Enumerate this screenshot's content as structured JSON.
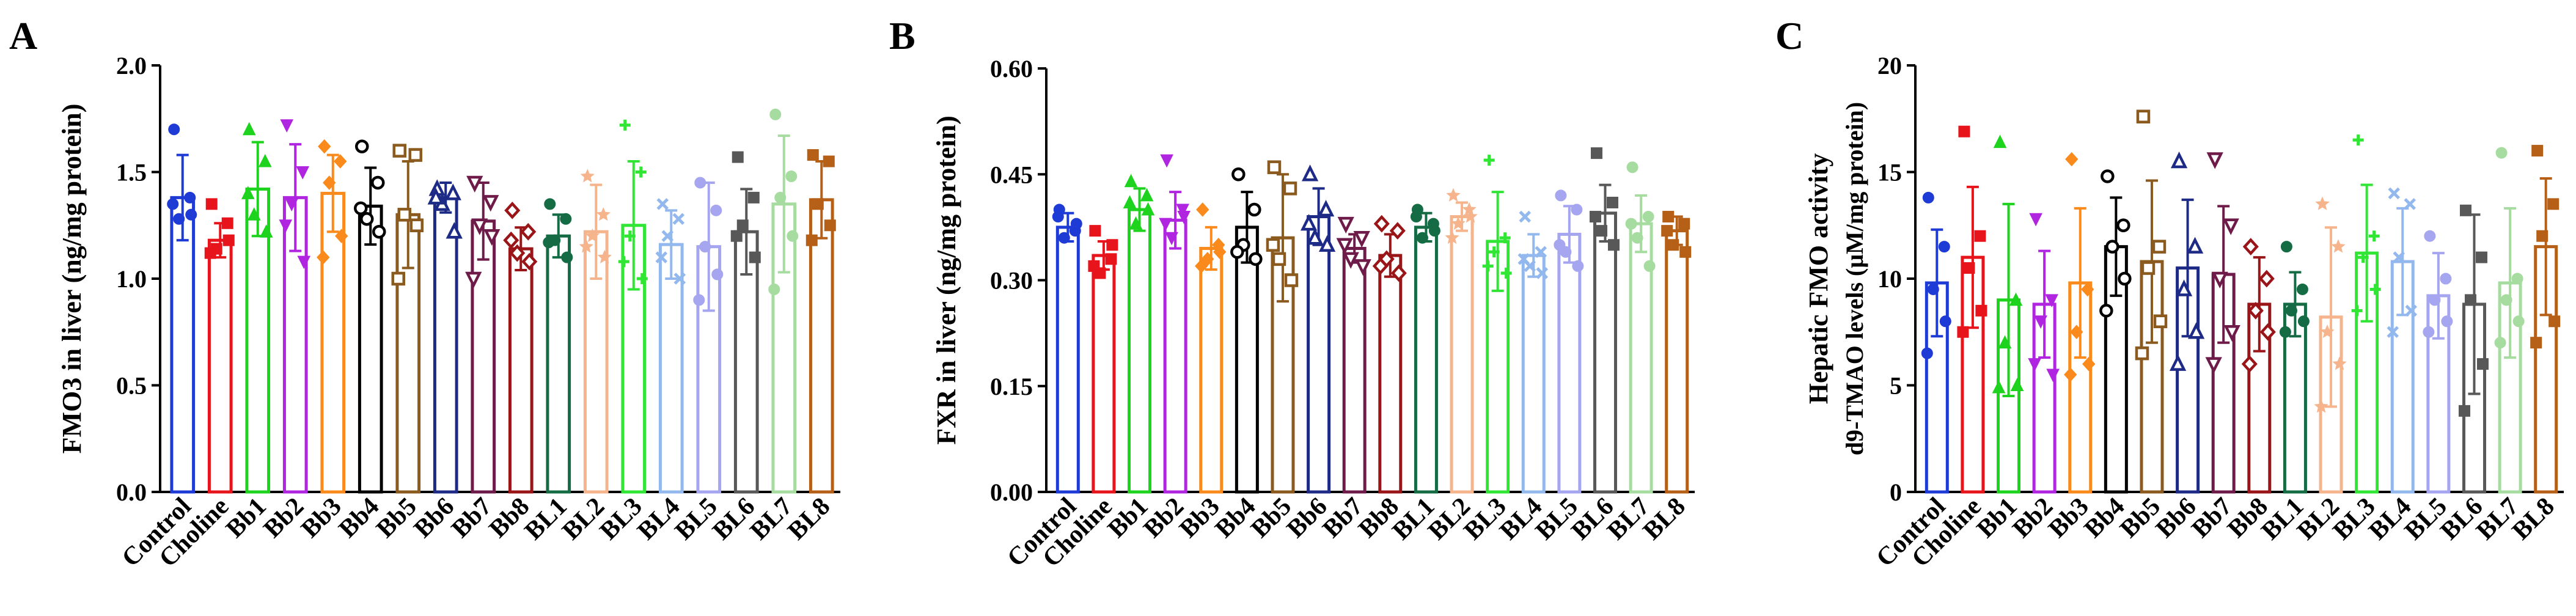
{
  "figure": {
    "categories": [
      "Control",
      "Choline",
      "Bb1",
      "Bb2",
      "Bb3",
      "Bb4",
      "Bb5",
      "Bb6",
      "Bb7",
      "Bb8",
      "BL1",
      "BL2",
      "BL3",
      "BL4",
      "BL5",
      "BL6",
      "BL7",
      "BL8"
    ],
    "colors": [
      "#1f3bd6",
      "#e8141c",
      "#1dd31d",
      "#b025e0",
      "#f98a1b",
      "#000000",
      "#8b5a1e",
      "#1e2b86",
      "#6e1b4a",
      "#9a1518",
      "#156c44",
      "#f6b48c",
      "#31e535",
      "#93b8ee",
      "#a6a6f0",
      "#585858",
      "#a6dca0",
      "#b55f17"
    ],
    "markers": [
      "circle",
      "square",
      "triangle",
      "triangle-down",
      "diamond",
      "circle-open",
      "square-open",
      "triangle-open",
      "triangle-down-open",
      "diamond-open",
      "circle",
      "star",
      "plus",
      "cross",
      "circle",
      "square",
      "circle",
      "square"
    ]
  },
  "chart_data": [
    {
      "type": "bar",
      "panel_label": "A",
      "ylabel": "FMO3 in liver (ng/mg protein)",
      "ylim": [
        0,
        2.0
      ],
      "yticks": [
        "0.0",
        "0.5",
        "1.0",
        "1.5",
        "2.0"
      ],
      "categories": [
        "Control",
        "Choline",
        "Bb1",
        "Bb2",
        "Bb3",
        "Bb4",
        "Bb5",
        "Bb6",
        "Bb7",
        "Bb8",
        "BL1",
        "BL2",
        "BL3",
        "BL4",
        "BL5",
        "BL6",
        "BL7",
        "BL8"
      ],
      "values": [
        1.38,
        1.18,
        1.42,
        1.38,
        1.4,
        1.34,
        1.3,
        1.38,
        1.27,
        1.14,
        1.2,
        1.22,
        1.25,
        1.16,
        1.15,
        1.22,
        1.35,
        1.37
      ],
      "errors": [
        0.2,
        0.08,
        0.22,
        0.25,
        0.18,
        0.18,
        0.25,
        0.07,
        0.18,
        0.1,
        0.1,
        0.22,
        0.3,
        0.16,
        0.3,
        0.2,
        0.32,
        0.18
      ],
      "points": [
        [
          1.7,
          1.38,
          1.28,
          1.3,
          1.35
        ],
        [
          1.35,
          1.26,
          1.14,
          1.18,
          1.12
        ],
        [
          1.7,
          1.55,
          1.3,
          1.22,
          1.4
        ],
        [
          1.72,
          1.5,
          1.35,
          1.08,
          1.25
        ],
        [
          1.62,
          1.55,
          1.45,
          1.2,
          1.1
        ],
        [
          1.62,
          1.45,
          1.28,
          1.22,
          1.33
        ],
        [
          1.6,
          1.58,
          1.3,
          1.25,
          1.0
        ],
        [
          1.42,
          1.4,
          1.35,
          1.22,
          1.38
        ],
        [
          1.45,
          1.36,
          1.25,
          1.2,
          1.0
        ],
        [
          1.32,
          1.22,
          1.12,
          1.08,
          1.18
        ],
        [
          1.35,
          1.28,
          1.18,
          1.1,
          1.17
        ],
        [
          1.48,
          1.3,
          1.2,
          1.1,
          1.15
        ],
        [
          1.72,
          1.5,
          1.2,
          1.0,
          1.08
        ],
        [
          1.35,
          1.28,
          1.2,
          1.0,
          1.1
        ],
        [
          1.45,
          1.32,
          1.15,
          1.02,
          0.9
        ],
        [
          1.57,
          1.38,
          1.25,
          1.1,
          1.2
        ],
        [
          1.77,
          1.48,
          1.38,
          1.2,
          0.95
        ],
        [
          1.58,
          1.55,
          1.35,
          1.25,
          1.18
        ]
      ]
    },
    {
      "type": "bar",
      "panel_label": "B",
      "ylabel": "FXR in liver (ng/mg protein)",
      "ylim": [
        0,
        0.6
      ],
      "yticks": [
        "0.00",
        "0.15",
        "0.30",
        "0.45",
        "0.60"
      ],
      "categories": [
        "Control",
        "Choline",
        "Bb1",
        "Bb2",
        "Bb3",
        "Bb4",
        "Bb5",
        "Bb6",
        "Bb7",
        "Bb8",
        "BL1",
        "BL2",
        "BL3",
        "BL4",
        "BL5",
        "BL6",
        "BL7",
        "BL8"
      ],
      "values": [
        0.375,
        0.335,
        0.4,
        0.385,
        0.345,
        0.375,
        0.36,
        0.39,
        0.345,
        0.335,
        0.375,
        0.39,
        0.355,
        0.335,
        0.365,
        0.395,
        0.38,
        0.37
      ],
      "errors": [
        0.02,
        0.02,
        0.03,
        0.04,
        0.03,
        0.05,
        0.09,
        0.04,
        0.02,
        0.03,
        0.02,
        0.02,
        0.07,
        0.03,
        0.04,
        0.04,
        0.04,
        0.02
      ],
      "points": [
        [
          0.4,
          0.37,
          0.36,
          0.38,
          0.39
        ],
        [
          0.37,
          0.33,
          0.31,
          0.35,
          0.32
        ],
        [
          0.44,
          0.42,
          0.38,
          0.4,
          0.41
        ],
        [
          0.47,
          0.4,
          0.36,
          0.39,
          0.38
        ],
        [
          0.4,
          0.35,
          0.33,
          0.34,
          0.32
        ],
        [
          0.45,
          0.4,
          0.35,
          0.33,
          0.34
        ],
        [
          0.46,
          0.43,
          0.33,
          0.3,
          0.35
        ],
        [
          0.45,
          0.4,
          0.36,
          0.35,
          0.38
        ],
        [
          0.38,
          0.36,
          0.33,
          0.32,
          0.35
        ],
        [
          0.38,
          0.37,
          0.33,
          0.31,
          0.32
        ],
        [
          0.4,
          0.38,
          0.36,
          0.37,
          0.39
        ],
        [
          0.42,
          0.4,
          0.38,
          0.39,
          0.36
        ],
        [
          0.47,
          0.36,
          0.34,
          0.31,
          0.32
        ],
        [
          0.39,
          0.34,
          0.32,
          0.31,
          0.33
        ],
        [
          0.42,
          0.4,
          0.34,
          0.32,
          0.35
        ],
        [
          0.48,
          0.41,
          0.37,
          0.35,
          0.39
        ],
        [
          0.46,
          0.39,
          0.36,
          0.32,
          0.38
        ],
        [
          0.39,
          0.38,
          0.35,
          0.34,
          0.37
        ]
      ]
    },
    {
      "type": "bar",
      "panel_label": "C",
      "ylabel": "Hepatic FMO activity",
      "ylabel2": "d9-TMAO levels (μM/mg protein)",
      "ylim": [
        0,
        20
      ],
      "yticks": [
        "0",
        "5",
        "10",
        "15",
        "20"
      ],
      "categories": [
        "Control",
        "Choline",
        "Bb1",
        "Bb2",
        "Bb3",
        "Bb4",
        "Bb5",
        "Bb6",
        "Bb7",
        "Bb8",
        "BL1",
        "BL2",
        "BL3",
        "BL4",
        "BL5",
        "BL6",
        "BL7",
        "BL8"
      ],
      "values": [
        9.8,
        11.0,
        9.0,
        8.8,
        9.8,
        11.5,
        10.8,
        10.5,
        10.2,
        8.8,
        8.8,
        8.2,
        11.2,
        10.8,
        9.2,
        8.8,
        9.8,
        11.5
      ],
      "errors": [
        2.5,
        3.3,
        4.5,
        2.5,
        3.5,
        2.3,
        3.8,
        3.2,
        3.2,
        2.2,
        1.5,
        4.2,
        3.2,
        2.5,
        2.0,
        4.2,
        3.5,
        3.2
      ],
      "points": [
        [
          13.8,
          11.5,
          9.5,
          8.0,
          6.5
        ],
        [
          16.9,
          12.0,
          10.5,
          8.5,
          7.5
        ],
        [
          16.4,
          9.0,
          7.0,
          5.0,
          4.9
        ],
        [
          12.8,
          9.0,
          8.0,
          5.5,
          6.0
        ],
        [
          15.6,
          9.5,
          7.5,
          6.0,
          5.5
        ],
        [
          14.8,
          12.5,
          11.5,
          10.0,
          8.5
        ],
        [
          17.6,
          11.5,
          10.5,
          8.0,
          6.5
        ],
        [
          15.5,
          11.5,
          9.5,
          7.5,
          6.0
        ],
        [
          15.6,
          12.5,
          10.0,
          7.5,
          6.0
        ],
        [
          11.5,
          10.0,
          8.5,
          7.5,
          6.0
        ],
        [
          11.5,
          9.5,
          8.5,
          8.0,
          7.5
        ],
        [
          13.5,
          11.5,
          7.5,
          6.0,
          4.0
        ],
        [
          16.5,
          12.0,
          11.0,
          9.5,
          8.5
        ],
        [
          14.0,
          13.5,
          11.0,
          8.5,
          7.5
        ],
        [
          12.0,
          10.0,
          9.0,
          8.0,
          7.5
        ],
        [
          13.2,
          11.0,
          9.0,
          6.0,
          3.8
        ],
        [
          15.9,
          10.0,
          9.0,
          8.0,
          7.0
        ],
        [
          16.0,
          13.5,
          12.0,
          8.0,
          7.0
        ]
      ]
    }
  ]
}
